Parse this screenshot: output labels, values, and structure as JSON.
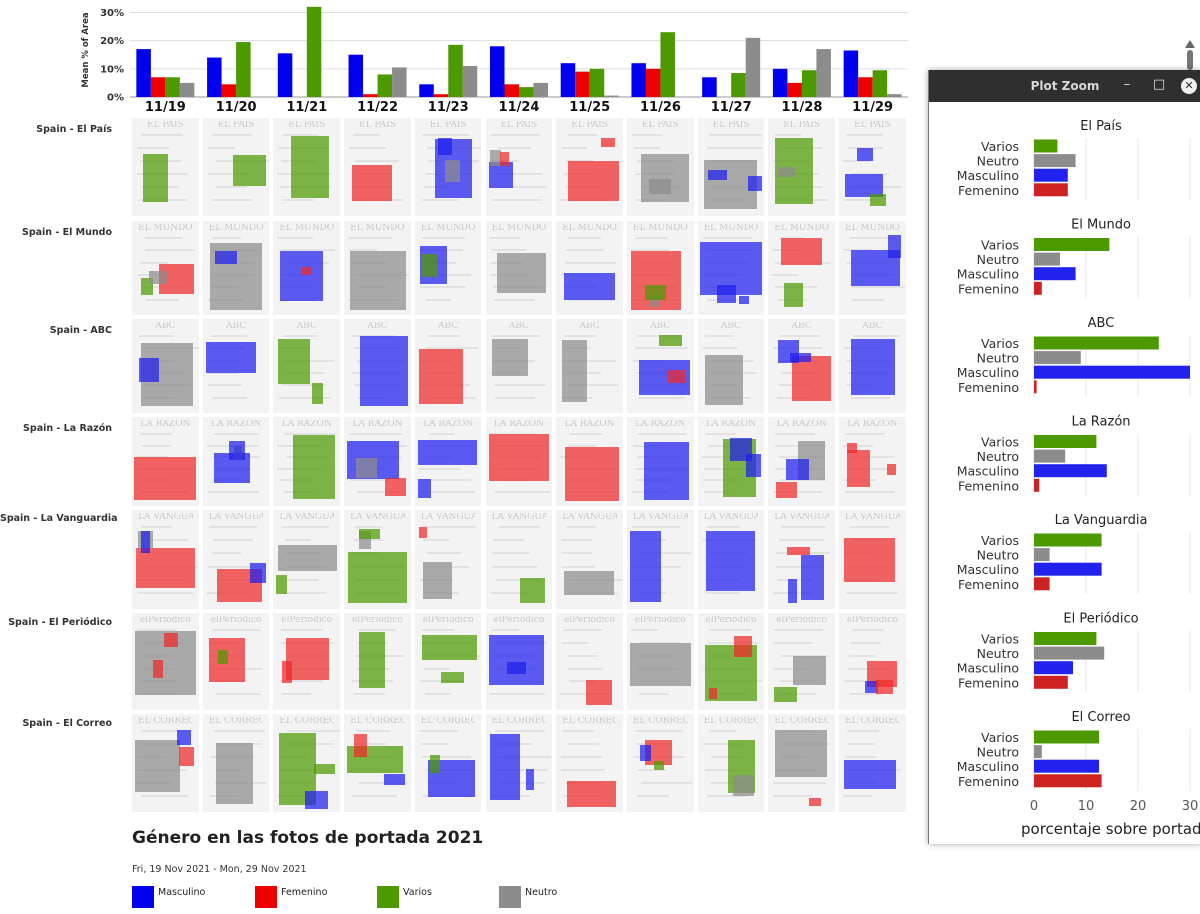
{
  "top_chart": {
    "type": "bar",
    "ylabel": "Mean % of Area",
    "ylim": [
      0,
      33
    ],
    "yticks": [
      "0%",
      "10%",
      "20%",
      "30%"
    ],
    "ytick_values": [
      0,
      10,
      20,
      30
    ],
    "categories": [
      "11/19",
      "11/20",
      "11/21",
      "11/22",
      "11/23",
      "11/24",
      "11/25",
      "11/26",
      "11/27",
      "11/28",
      "11/29"
    ],
    "series": [
      {
        "name": "Masculino",
        "color": "#0000ee",
        "values": [
          17,
          14,
          15.5,
          15,
          4.5,
          18,
          12,
          12,
          7,
          10,
          16.5
        ]
      },
      {
        "name": "Femenino",
        "color": "#ee0000",
        "values": [
          7,
          4.5,
          0,
          1,
          1,
          4.5,
          9,
          10,
          0,
          5,
          7
        ]
      },
      {
        "name": "Varios",
        "color": "#4c9a00",
        "values": [
          7,
          19.5,
          32,
          8,
          18.5,
          3.5,
          10,
          23,
          8.5,
          9.5,
          9.5
        ]
      },
      {
        "name": "Neutro",
        "color": "#8c8c8c",
        "values": [
          5,
          0,
          0,
          10.5,
          11,
          5,
          0.5,
          0,
          21,
          17,
          1
        ]
      }
    ]
  },
  "rows": [
    "Spain - El País",
    "Spain - El Mundo",
    "Spain - ABC",
    "Spain - La Razón",
    "Spain - La Vanguardia",
    "Spain - El Periódico",
    "Spain - El Correo"
  ],
  "mastheads": [
    "EL PAÍS",
    "EL MUNDO",
    "ABC",
    "LA RAZÓN",
    "LA VANGUARDIA",
    "elPeriódico",
    "EL CORREO"
  ],
  "footer": {
    "title": "Género en las fotos de portada 2021",
    "date_range": "Fri, 19 Nov 2021 - Mon, 29 Nov 2021"
  },
  "legend": [
    {
      "label": "Masculino",
      "color": "#0000ee"
    },
    {
      "label": "Femenino",
      "color": "#ee0000"
    },
    {
      "label": "Varios",
      "color": "#4c9a00"
    },
    {
      "label": "Neutro",
      "color": "#8c8c8c"
    }
  ],
  "zoom_window": {
    "title": "Plot Zoom",
    "minimize_glyph": "–",
    "maximize_glyph": "□",
    "close_glyph": "✕"
  },
  "chart_data": [
    {
      "type": "bar",
      "categories": [
        "11/19",
        "11/20",
        "11/21",
        "11/22",
        "11/23",
        "11/24",
        "11/25",
        "11/26",
        "11/27",
        "11/28",
        "11/29"
      ],
      "series": [
        {
          "name": "Masculino",
          "values": [
            17,
            14,
            15.5,
            15,
            4.5,
            18,
            12,
            12,
            7,
            10,
            16.5
          ]
        },
        {
          "name": "Femenino",
          "values": [
            7,
            4.5,
            0,
            1,
            1,
            4.5,
            9,
            10,
            0,
            5,
            7
          ]
        },
        {
          "name": "Varios",
          "values": [
            7,
            19.5,
            32,
            8,
            18.5,
            3.5,
            10,
            23,
            8.5,
            9.5,
            9.5
          ]
        },
        {
          "name": "Neutro",
          "values": [
            5,
            0,
            0,
            10.5,
            11,
            5,
            0.5,
            0,
            21,
            17,
            1
          ]
        }
      ],
      "ylabel": "Mean % of Area",
      "ylim": [
        0,
        33
      ],
      "legend": "bottom"
    },
    {
      "type": "bar",
      "orientation": "horizontal",
      "xlabel": "porcentaje sobre portada",
      "xlim": [
        0,
        30
      ],
      "xticks": [
        "0",
        "10",
        "20",
        "30"
      ],
      "xtick_values": [
        0,
        10,
        20,
        30
      ],
      "categories": [
        "Varios",
        "Neutro",
        "Masculino",
        "Femenino"
      ],
      "colors": {
        "Varios": "#4c9a00",
        "Neutro": "#8c8c8c",
        "Masculino": "#2222ee",
        "Femenino": "#cc2222"
      },
      "panels": [
        {
          "title": "El País",
          "values": {
            "Varios": 4.5,
            "Neutro": 8,
            "Masculino": 6.5,
            "Femenino": 6.5
          }
        },
        {
          "title": "El Mundo",
          "values": {
            "Varios": 14.5,
            "Neutro": 5,
            "Masculino": 8,
            "Femenino": 1.5
          }
        },
        {
          "title": "ABC",
          "values": {
            "Varios": 24,
            "Neutro": 9,
            "Masculino": 30,
            "Femenino": 0.5
          }
        },
        {
          "title": "La Razón",
          "values": {
            "Varios": 12,
            "Neutro": 6,
            "Masculino": 14,
            "Femenino": 1
          }
        },
        {
          "title": "La Vanguardia",
          "values": {
            "Varios": 13,
            "Neutro": 3,
            "Masculino": 13,
            "Femenino": 3
          }
        },
        {
          "title": "El Periódico",
          "values": {
            "Varios": 12,
            "Neutro": 13.5,
            "Masculino": 7.5,
            "Femenino": 6.5
          }
        },
        {
          "title": "El Correo",
          "values": {
            "Varios": 12.5,
            "Neutro": 1.5,
            "Masculino": 12.5,
            "Femenino": 13
          }
        }
      ]
    }
  ]
}
